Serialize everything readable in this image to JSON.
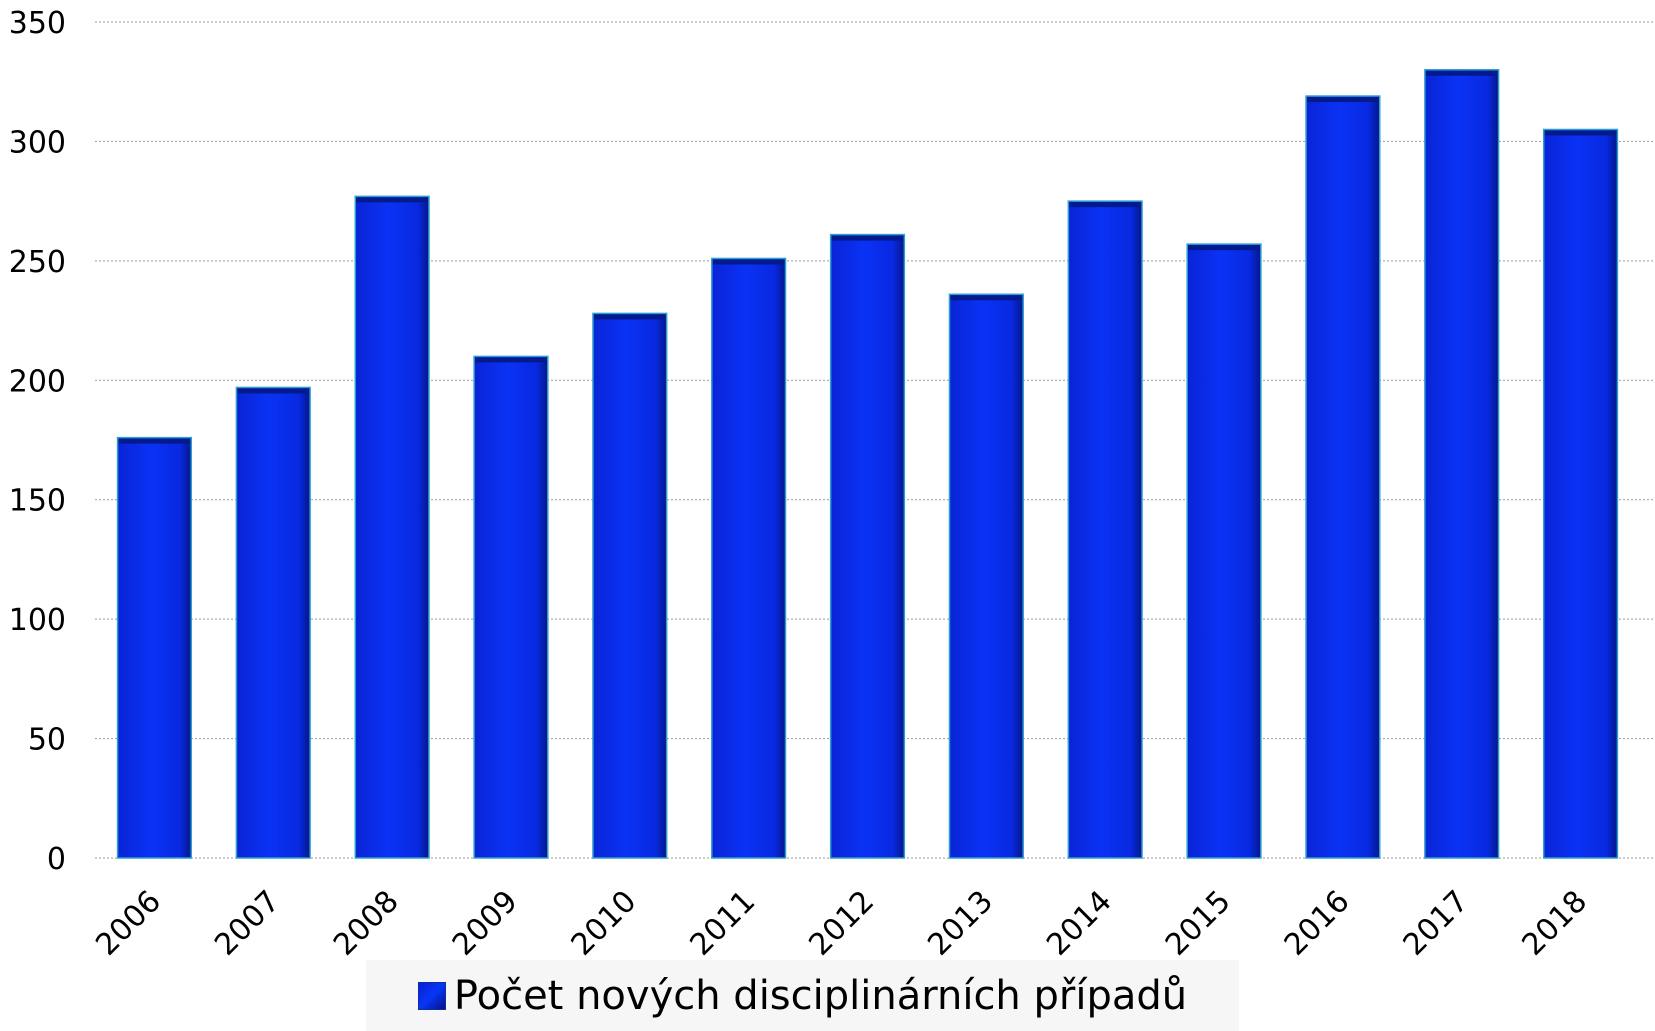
{
  "chart_data": {
    "type": "bar",
    "categories": [
      "2006",
      "2007",
      "2008",
      "2009",
      "2010",
      "2011",
      "2012",
      "2013",
      "2014",
      "2015",
      "2016",
      "2017",
      "2018"
    ],
    "series": [
      {
        "name": "Počet nových disciplinárních případů",
        "values": [
          176,
          197,
          277,
          210,
          228,
          251,
          261,
          236,
          275,
          257,
          319,
          330,
          305
        ]
      }
    ],
    "ylim": [
      0,
      350
    ],
    "yticks": [
      0,
      50,
      100,
      150,
      200,
      250,
      300,
      350
    ],
    "grid": true,
    "legend_position": "bottom",
    "colors": {
      "bar": "#0a2ff2",
      "bar_dark": "#041a8c",
      "bar_edge": "#2a9fd0",
      "grid": "#9a9a9a"
    }
  }
}
